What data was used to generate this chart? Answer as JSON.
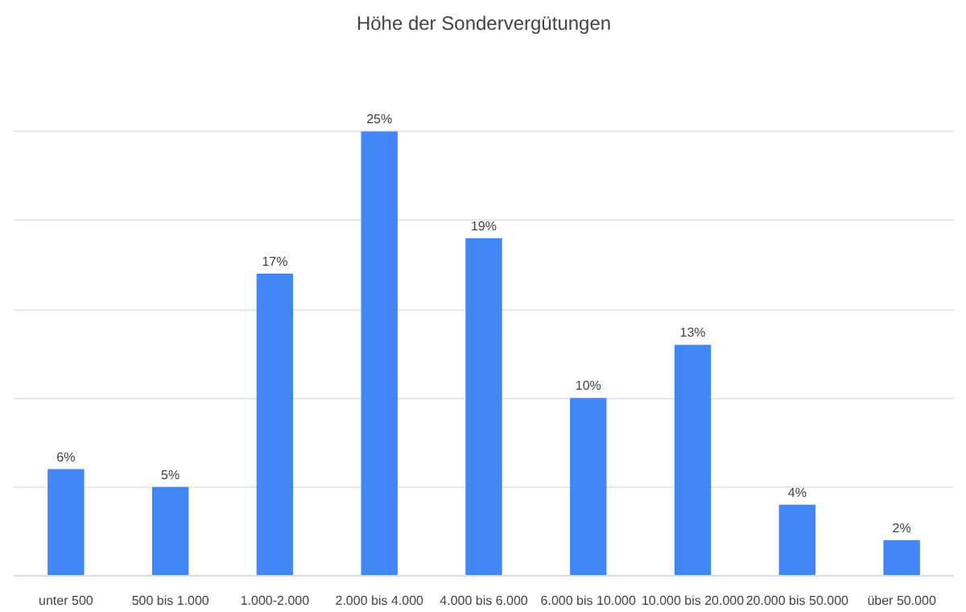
{
  "chart_data": {
    "type": "bar",
    "title": "Höhe der Sondervergütungen",
    "categories": [
      "unter 500",
      "500 bis 1.000",
      "1.000-2.000",
      "2.000 bis 4.000",
      "4.000 bis 6.000",
      "6.000 bis 10.000",
      "10.000 bis 20.000",
      "20.000 bis 50.000",
      "über 50.000"
    ],
    "values": [
      6,
      5,
      17,
      25,
      19,
      10,
      13,
      4,
      2
    ],
    "value_labels": [
      "6%",
      "5%",
      "17%",
      "25%",
      "19%",
      "10%",
      "13%",
      "4%",
      "2%"
    ],
    "color": "#4285f4",
    "yticks": [
      {
        "value": 0,
        "label": null
      },
      {
        "value": 5,
        "label": null
      },
      {
        "value": 10,
        "label": null
      },
      {
        "value": 15,
        "label": null
      },
      {
        "value": 20,
        "label": null
      },
      {
        "value": 25,
        "label": null
      }
    ],
    "grid": "y",
    "tick_labels": "x"
  }
}
